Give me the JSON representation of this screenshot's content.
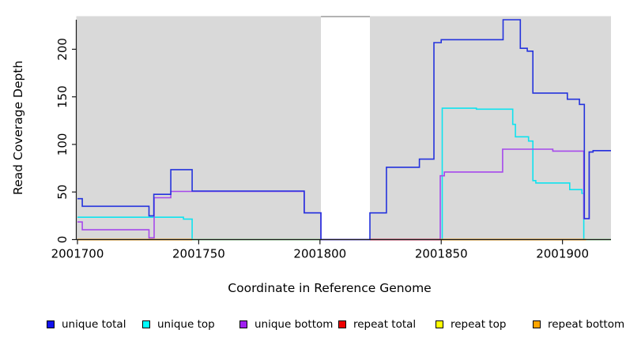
{
  "chart_data": {
    "type": "line",
    "subtype": "step-coverage",
    "title": "",
    "xlabel": "Coordinate in Reference Genome",
    "ylabel": "Read Coverage Depth",
    "xlim": [
      2001700,
      2001920
    ],
    "ylim": [
      0,
      235
    ],
    "x_ticks": [
      2001700,
      2001750,
      2001800,
      2001850,
      2001900
    ],
    "y_ticks": [
      0,
      50,
      100,
      150,
      200
    ],
    "grid": false,
    "legend_position": "bottom",
    "plot_bg_color": "#d9d9d9",
    "axis_color": "#1a1a1a",
    "gap_region": {
      "start": 2001800.4,
      "end": 2001820.6,
      "fill": "#ffffff",
      "top_edge_color": "#9a9a9a"
    },
    "series": [
      {
        "name": "unique total",
        "color": "#2433dd",
        "render": true,
        "segments": [
          [
            [
              2001700,
              43
            ],
            [
              2001702,
              35
            ],
            [
              2001729.5,
              25
            ],
            [
              2001731.5,
              47.5
            ],
            [
              2001738.5,
              73.5
            ],
            [
              2001747.3,
              51
            ],
            [
              2001793.5,
              28
            ],
            [
              2001800.4,
              0
            ],
            [
              2001820.6,
              28
            ],
            [
              2001827.4,
              76
            ],
            [
              2001841,
              84.5
            ],
            [
              2001847,
              207
            ],
            [
              2001850,
              210
            ],
            [
              2001875.5,
              231
            ],
            [
              2001882.6,
              201
            ],
            [
              2001885.5,
              198
            ],
            [
              2001887.8,
              154
            ],
            [
              2001902,
              147.5
            ],
            [
              2001907,
              142
            ],
            [
              2001909,
              22
            ],
            [
              2001911,
              92
            ],
            [
              2001912.6,
              93.5
            ],
            [
              2001920,
              93.5
            ]
          ]
        ]
      },
      {
        "name": "unique top",
        "color": "#0fe3ef",
        "render": true,
        "segments": [
          [
            [
              2001700,
              23.5
            ],
            [
              2001743.7,
              21.5
            ],
            [
              2001747.3,
              0
            ],
            [
              2001800.4,
              0
            ]
          ],
          [
            [
              2001820.6,
              0
            ],
            [
              2001850.4,
              138
            ],
            [
              2001864.5,
              137
            ],
            [
              2001879.5,
              121
            ],
            [
              2001880.6,
              108
            ],
            [
              2001886,
              103.5
            ],
            [
              2001887.8,
              62
            ],
            [
              2001889,
              59.5
            ],
            [
              2001903,
              52.5
            ],
            [
              2001908,
              48.5
            ],
            [
              2001908.8,
              0
            ],
            [
              2001920,
              0
            ]
          ]
        ]
      },
      {
        "name": "unique bottom",
        "color": "#a649ec",
        "render": true,
        "segments": [
          [
            [
              2001700,
              18.5
            ],
            [
              2001702,
              10.3
            ],
            [
              2001729.5,
              1.8
            ],
            [
              2001731.6,
              44
            ],
            [
              2001738.5,
              50.6
            ],
            [
              2001793.5,
              28
            ],
            [
              2001800.4,
              0
            ],
            [
              2001849.6,
              67
            ],
            [
              2001851.3,
              71
            ],
            [
              2001875.3,
              95
            ],
            [
              2001896,
              93
            ],
            [
              2001908.8,
              22
            ],
            [
              2001911,
              92
            ],
            [
              2001912.6,
              93.5
            ],
            [
              2001920,
              93.5
            ]
          ]
        ]
      },
      {
        "name": "repeat total",
        "color": "#ee0000",
        "render": false,
        "segments": [
          [
            [
              2001700,
              0
            ],
            [
              2001800.4,
              0
            ]
          ],
          [
            [
              2001820.6,
              0
            ],
            [
              2001920,
              0
            ]
          ]
        ]
      },
      {
        "name": "repeat top",
        "color": "#ffff00",
        "render": false,
        "segments": [
          [
            [
              2001700,
              0
            ],
            [
              2001800.4,
              0
            ]
          ],
          [
            [
              2001820.6,
              0
            ],
            [
              2001920,
              0
            ]
          ]
        ]
      },
      {
        "name": "repeat bottom",
        "color": "#ffa500",
        "render": false,
        "segments": [
          [
            [
              2001700,
              0
            ],
            [
              2001800.4,
              0
            ]
          ],
          [
            [
              2001820.6,
              0
            ],
            [
              2001920,
              0
            ]
          ]
        ]
      }
    ],
    "zero_line_segments": [
      {
        "start": 2001700,
        "end": 2001747.3,
        "color": "#ffa207"
      },
      {
        "start": 2001747.3,
        "end": 2001800.4,
        "color": "#9ce29c"
      },
      {
        "start": 2001820.6,
        "end": 2001849.6,
        "color": "#e03560"
      },
      {
        "start": 2001849.6,
        "end": 2001909.8,
        "color": "#ffa207"
      },
      {
        "start": 2001909.8,
        "end": 2001920,
        "color": "#9ce29c"
      }
    ],
    "legend": [
      {
        "label": "unique total",
        "color": "#1111ee"
      },
      {
        "label": "unique top",
        "color": "#00ffff"
      },
      {
        "label": "unique bottom",
        "color": "#a020f0"
      },
      {
        "label": "repeat total",
        "color": "#ee0000"
      },
      {
        "label": "repeat top",
        "color": "#ffff00"
      },
      {
        "label": "repeat bottom",
        "color": "#ffa500"
      }
    ]
  }
}
